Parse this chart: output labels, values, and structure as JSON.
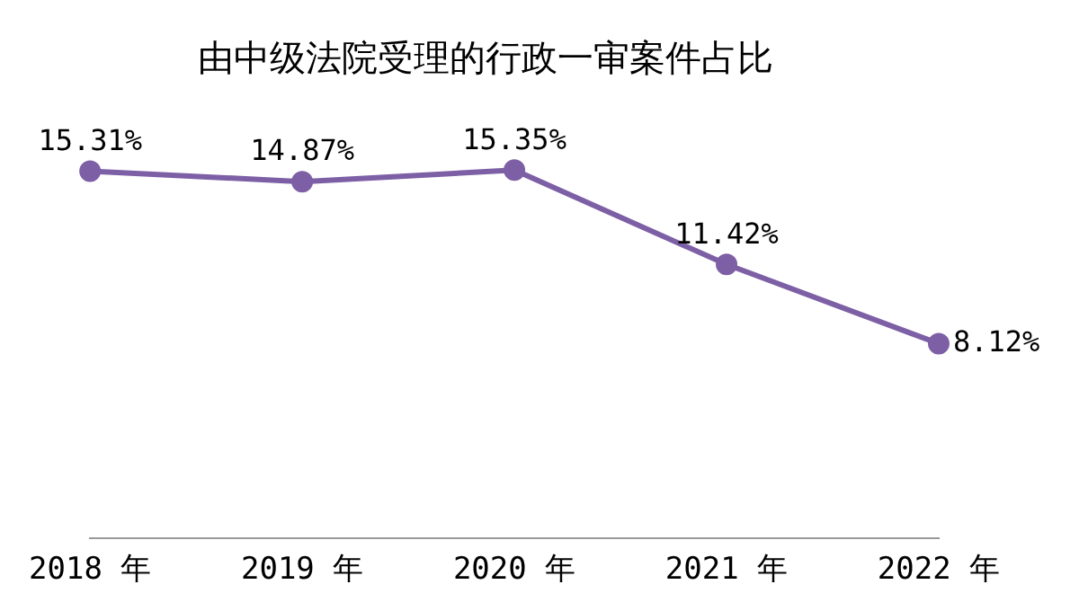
{
  "chart_data": {
    "type": "line",
    "title": "由中级法院受理的行政一审案件占比",
    "categories": [
      "2018 年",
      "2019 年",
      "2020 年",
      "2021 年",
      "2022 年"
    ],
    "series": [
      {
        "color": "#7d5fa5",
        "values": [
          15.31,
          14.87,
          15.35,
          11.42,
          8.12
        ],
        "value_labels": [
          "15.31%",
          "14.87%",
          "15.35%",
          "11.42%",
          "8.12%"
        ]
      }
    ],
    "tick_labels": "x",
    "grid": false,
    "legend": false,
    "marker": "circle",
    "line_style": "solid"
  }
}
